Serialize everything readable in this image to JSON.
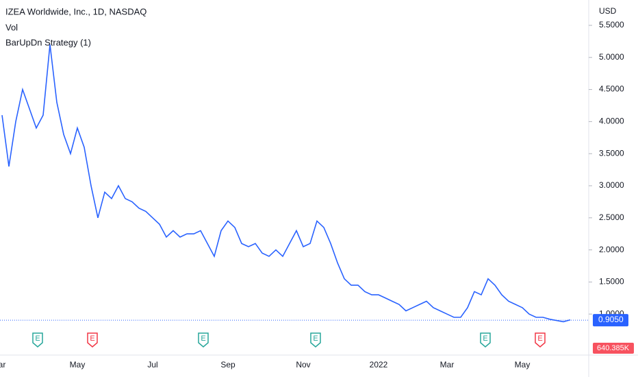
{
  "chart_data": {
    "type": "line",
    "title": "IZEA Worldwide, Inc., 1D, NASDAQ",
    "indicators": [
      "Vol",
      "BarUpDn Strategy (1)"
    ],
    "y_unit": "USD",
    "categories": [
      "ar",
      null,
      null,
      null,
      null,
      null,
      null,
      null,
      null,
      null,
      null,
      "May",
      null,
      null,
      null,
      null,
      null,
      null,
      null,
      null,
      null,
      null,
      "Jul",
      null,
      null,
      null,
      null,
      null,
      null,
      null,
      null,
      null,
      null,
      "Sep",
      null,
      null,
      null,
      null,
      null,
      null,
      null,
      null,
      null,
      null,
      "Nov",
      null,
      null,
      null,
      null,
      null,
      null,
      null,
      null,
      null,
      null,
      "2022",
      null,
      null,
      null,
      null,
      null,
      null,
      null,
      null,
      null,
      "Mar",
      null,
      null,
      null,
      null,
      null,
      null,
      null,
      null,
      null,
      null,
      "May",
      null,
      null,
      null,
      null,
      null,
      null,
      null
    ],
    "series": [
      {
        "name": "IZEA",
        "color": "#2962ff",
        "values": [
          4.1,
          3.3,
          4.0,
          4.5,
          4.2,
          3.9,
          4.1,
          5.2,
          4.3,
          3.8,
          3.5,
          3.9,
          3.6,
          3.0,
          2.5,
          2.9,
          2.8,
          3.0,
          2.8,
          2.75,
          2.65,
          2.6,
          2.5,
          2.4,
          2.2,
          2.3,
          2.2,
          2.25,
          2.25,
          2.3,
          2.1,
          1.9,
          2.3,
          2.45,
          2.35,
          2.1,
          2.05,
          2.1,
          1.95,
          1.9,
          2.0,
          1.9,
          2.1,
          2.3,
          2.05,
          2.1,
          2.45,
          2.35,
          2.1,
          1.8,
          1.55,
          1.45,
          1.45,
          1.35,
          1.3,
          1.3,
          1.25,
          1.2,
          1.15,
          1.05,
          1.1,
          1.15,
          1.2,
          1.1,
          1.05,
          1.0,
          0.95,
          0.95,
          1.1,
          1.35,
          1.3,
          1.55,
          1.45,
          1.3,
          1.2,
          1.15,
          1.1,
          1.0,
          0.95,
          0.95,
          0.92,
          0.9,
          0.88,
          0.91
        ]
      }
    ],
    "ylim": [
      0.393,
      5.895
    ],
    "yticks": [
      {
        "value": 1.0,
        "label": "1.0000"
      },
      {
        "value": 1.5,
        "label": "1.5000"
      },
      {
        "value": 2.0,
        "label": "2.0000"
      },
      {
        "value": 2.5,
        "label": "2.5000"
      },
      {
        "value": 3.0,
        "label": "3.0000"
      },
      {
        "value": 3.5,
        "label": "3.5000"
      },
      {
        "value": 4.0,
        "label": "4.0000"
      },
      {
        "value": 4.5,
        "label": "4.5000"
      },
      {
        "value": 5.0,
        "label": "5.0000"
      },
      {
        "value": 5.5,
        "label": "5.5000"
      }
    ],
    "last_price": {
      "value": 0.905,
      "label": "0.9050"
    },
    "volume_label": "640.385K",
    "earnings_marker": "E"
  }
}
